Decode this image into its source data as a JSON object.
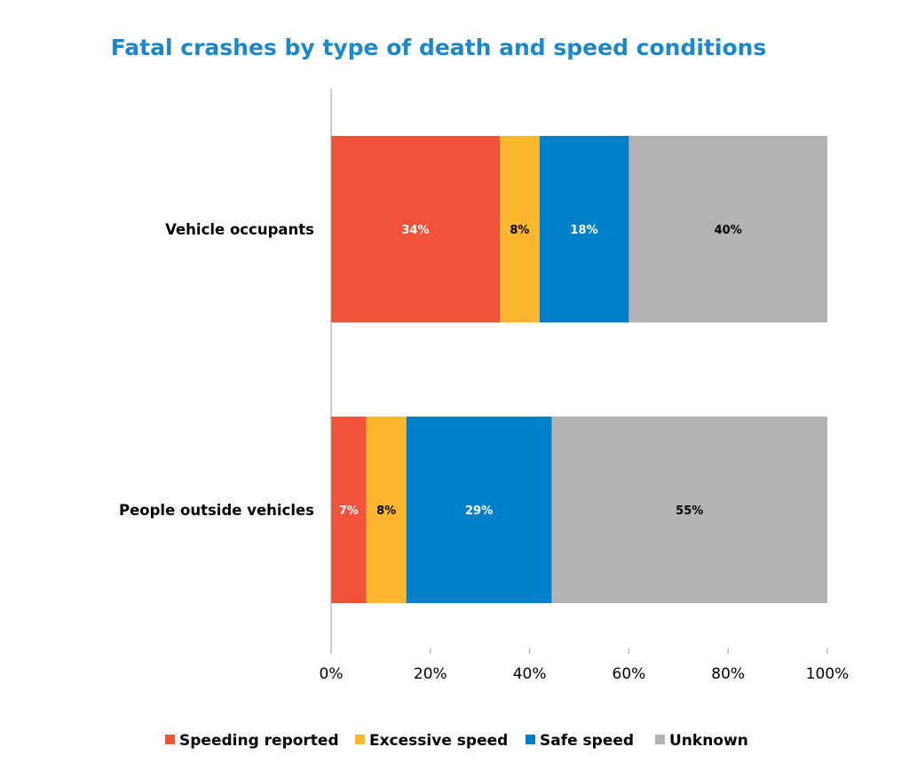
{
  "chart_data": {
    "type": "bar",
    "orientation": "horizontal",
    "stacked": true,
    "title": "Fatal crashes by type of death and speed conditions",
    "categories": [
      "Vehicle occupants",
      "People outside vehicles"
    ],
    "series": [
      {
        "name": "Speeding reported",
        "color": "#F0533A",
        "label_color": "#FFFFFF",
        "values": [
          34,
          7
        ],
        "labels": [
          "34%",
          "7%"
        ]
      },
      {
        "name": "Excessive speed",
        "color": "#FDB72E",
        "label_color": "#000000",
        "values": [
          8,
          8
        ],
        "labels": [
          "8%",
          "8%"
        ]
      },
      {
        "name": "Safe speed",
        "color": "#0080C8",
        "label_color": "#FFFFFF",
        "values": [
          18,
          29
        ],
        "labels": [
          "18%",
          "29%"
        ]
      },
      {
        "name": "Unknown",
        "color": "#B3B3B3",
        "label_color": "#000000",
        "values": [
          40,
          55
        ],
        "labels": [
          "40%",
          "55%"
        ]
      }
    ],
    "xlim": [
      0,
      100
    ],
    "xticks": [
      "0%",
      "20%",
      "40%",
      "60%",
      "80%",
      "100%"
    ],
    "grid": false,
    "legend": "bottom"
  }
}
